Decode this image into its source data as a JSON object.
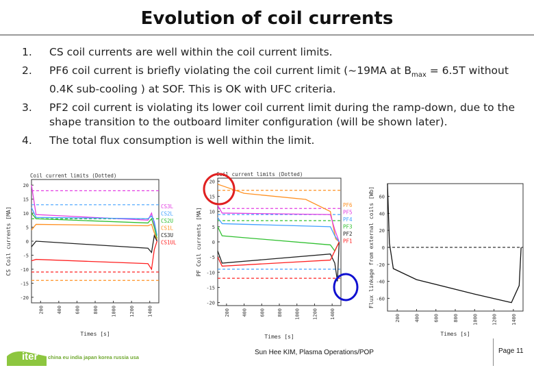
{
  "slide": {
    "title": "Evolution of coil currents",
    "bullets": [
      {
        "num": "1.",
        "parts": [
          {
            "t": "CS coil currents are well within the coil current limits.",
            "red": false
          }
        ]
      },
      {
        "num": "2.",
        "parts": [
          {
            "t": "PF6 coil current is briefly violating the coil current limit (~19MA at B",
            "red": false
          },
          {
            "t": "max",
            "red": false,
            "sub": true
          },
          {
            "t": " = 6.5T without 0.4K sub-cooling ) at SOF",
            "red": false
          },
          {
            "t": ".  This is OK with UFC criteria.",
            "red": false
          }
        ]
      },
      {
        "num": "3.",
        "parts": [
          {
            "t": "PF2 coil current is violating its lower coil current limit during the ramp-down, due to the shape transition to the outboard limiter configuration (will be shown later).",
            "red": false
          }
        ]
      },
      {
        "num": "4.",
        "parts": [
          {
            "t": "The total flux consumption is well within the limit.",
            "red": false
          }
        ]
      }
    ]
  },
  "footer": {
    "logo_text": "iter",
    "partners": "china eu india japan korea russia usa",
    "center": "Sun Hee KIM, Plasma Operations/POP",
    "page": "Page 11"
  },
  "colors": {
    "logo_bg": "#8dc63f",
    "partners": "#6fa82f",
    "annotation_red": "#e02020",
    "annotation_blue": "#1010d0"
  },
  "chart_data": [
    {
      "type": "line",
      "title": "Coil current limits (Dotted)",
      "ylabel": "CS Coil currents [MA]",
      "xlabel": "Times [s]",
      "xlim": [
        100,
        1500
      ],
      "ylim": [
        -22,
        22
      ],
      "xticks": [
        200,
        400,
        600,
        800,
        1000,
        1200,
        1400
      ],
      "yticks": [
        20,
        15,
        10,
        5,
        0,
        -5,
        -10,
        -15,
        -20
      ],
      "legend": [
        "CS3L",
        "CS2L",
        "CS2U",
        "CS1L",
        "CS3U",
        "CS1UL"
      ],
      "legend_colors": [
        "#e23de2",
        "#40a0ff",
        "#30c030",
        "#ff9020",
        "#202020",
        "#ff2020"
      ],
      "limits": [
        {
          "y": 18,
          "color": "#e23de2"
        },
        {
          "y": 13,
          "color": "#40a0ff"
        },
        {
          "y": 8,
          "color": "#30c030"
        },
        {
          "y": -11,
          "color": "#ff2020"
        },
        {
          "y": -14,
          "color": "#ff9020"
        }
      ],
      "series": [
        {
          "color": "#e23de2",
          "x": [
            100,
            150,
            1380,
            1420,
            1450,
            1480
          ],
          "y": [
            20,
            9.5,
            7.5,
            10,
            6,
            0
          ]
        },
        {
          "color": "#40a0ff",
          "x": [
            100,
            150,
            1380,
            1420,
            1450,
            1480
          ],
          "y": [
            12,
            8.5,
            8,
            9,
            7,
            2
          ]
        },
        {
          "color": "#30c030",
          "x": [
            100,
            150,
            1380,
            1420,
            1450,
            1480
          ],
          "y": [
            10,
            8,
            6.5,
            8,
            5,
            1
          ]
        },
        {
          "color": "#ff9020",
          "x": [
            100,
            150,
            1380,
            1420,
            1450,
            1480
          ],
          "y": [
            4,
            6,
            5.5,
            6,
            3,
            0.5
          ]
        },
        {
          "color": "#202020",
          "x": [
            100,
            150,
            1380,
            1420,
            1450,
            1480
          ],
          "y": [
            -2,
            0,
            -2.5,
            -4,
            2,
            0
          ]
        },
        {
          "color": "#ff2020",
          "x": [
            100,
            150,
            1380,
            1420,
            1450,
            1480
          ],
          "y": [
            -7,
            -6.5,
            -8,
            -10,
            -3,
            0
          ]
        }
      ]
    },
    {
      "type": "line",
      "title": "Coil current limits (Dotted)",
      "ylabel": "PF Coil currents [MA]",
      "xlabel": "Times [s]",
      "xlim": [
        100,
        1500
      ],
      "ylim": [
        -21,
        21
      ],
      "xticks": [
        200,
        400,
        600,
        800,
        1000,
        1200,
        1400
      ],
      "yticks": [
        20,
        15,
        10,
        5,
        0,
        -5,
        -10,
        -15,
        -20
      ],
      "legend": [
        "PF6",
        "PF5",
        "PF4",
        "PF3",
        "PF2",
        "PF1"
      ],
      "legend_colors": [
        "#ff9020",
        "#e23de2",
        "#40a0ff",
        "#30c030",
        "#202020",
        "#ff2020"
      ],
      "limits": [
        {
          "y": 17,
          "color": "#ff9020"
        },
        {
          "y": 11,
          "color": "#e23de2"
        },
        {
          "y": 9,
          "color": "#40a0ff"
        },
        {
          "y": 7,
          "color": "#30c030"
        },
        {
          "y": -9,
          "color": "#40a0ff"
        },
        {
          "y": -12,
          "color": "#ff2020"
        }
      ],
      "series": [
        {
          "color": "#ff9020",
          "x": [
            100,
            150,
            400,
            1100,
            1380,
            1440,
            1480
          ],
          "y": [
            19,
            18.5,
            16,
            14,
            10,
            1,
            0
          ]
        },
        {
          "color": "#e23de2",
          "x": [
            100,
            150,
            1380,
            1430,
            1480
          ],
          "y": [
            12,
            9.5,
            9,
            4,
            0
          ]
        },
        {
          "color": "#40a0ff",
          "x": [
            100,
            150,
            1380,
            1430,
            1480
          ],
          "y": [
            8,
            6,
            5,
            2,
            0
          ]
        },
        {
          "color": "#30c030",
          "x": [
            100,
            150,
            1380,
            1430,
            1480
          ],
          "y": [
            5,
            2,
            -1,
            -3,
            0
          ]
        },
        {
          "color": "#202020",
          "x": [
            100,
            150,
            1380,
            1430,
            1460,
            1480
          ],
          "y": [
            -3,
            -7,
            -4,
            -7,
            -13,
            0
          ]
        },
        {
          "color": "#ff2020",
          "x": [
            100,
            150,
            1380,
            1430,
            1480
          ],
          "y": [
            -5,
            -8,
            -6,
            -3,
            0
          ]
        }
      ]
    },
    {
      "type": "line",
      "title": "",
      "ylabel": "Flux linkage from external coils [Wb]",
      "xlabel": "Times [s]",
      "xlim": [
        100,
        1500
      ],
      "ylim": [
        -75,
        75
      ],
      "xticks": [
        200,
        400,
        600,
        800,
        1000,
        1200,
        1400
      ],
      "yticks": [
        60,
        40,
        20,
        0,
        -20,
        -40,
        -60
      ],
      "limits": [
        {
          "y": 0,
          "color": "#333333"
        }
      ],
      "series": [
        {
          "color": "#111111",
          "x": [
            100,
            120,
            160,
            400,
            1000,
            1380,
            1420,
            1460,
            1480
          ],
          "y": [
            75,
            5,
            -25,
            -38,
            -55,
            -65,
            -55,
            -45,
            0
          ]
        }
      ]
    }
  ]
}
